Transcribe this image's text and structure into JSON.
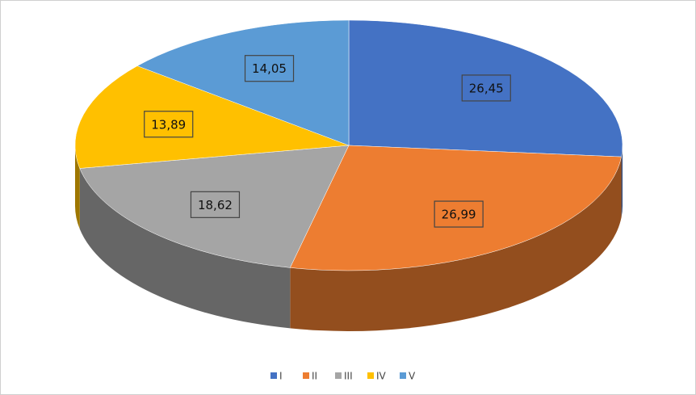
{
  "chart_data": {
    "type": "pie3d",
    "categories": [
      "I",
      "II",
      "III",
      "IV",
      "V"
    ],
    "values": [
      26.45,
      26.99,
      18.62,
      13.89,
      14.05
    ],
    "value_labels": [
      "26,45",
      "26,99",
      "18,62",
      "13,89",
      "14,05"
    ],
    "colors": [
      "#4472c4",
      "#ed7d31",
      "#a5a5a5",
      "#ffc000",
      "#5b9bd5"
    ],
    "legend": "bottom"
  }
}
